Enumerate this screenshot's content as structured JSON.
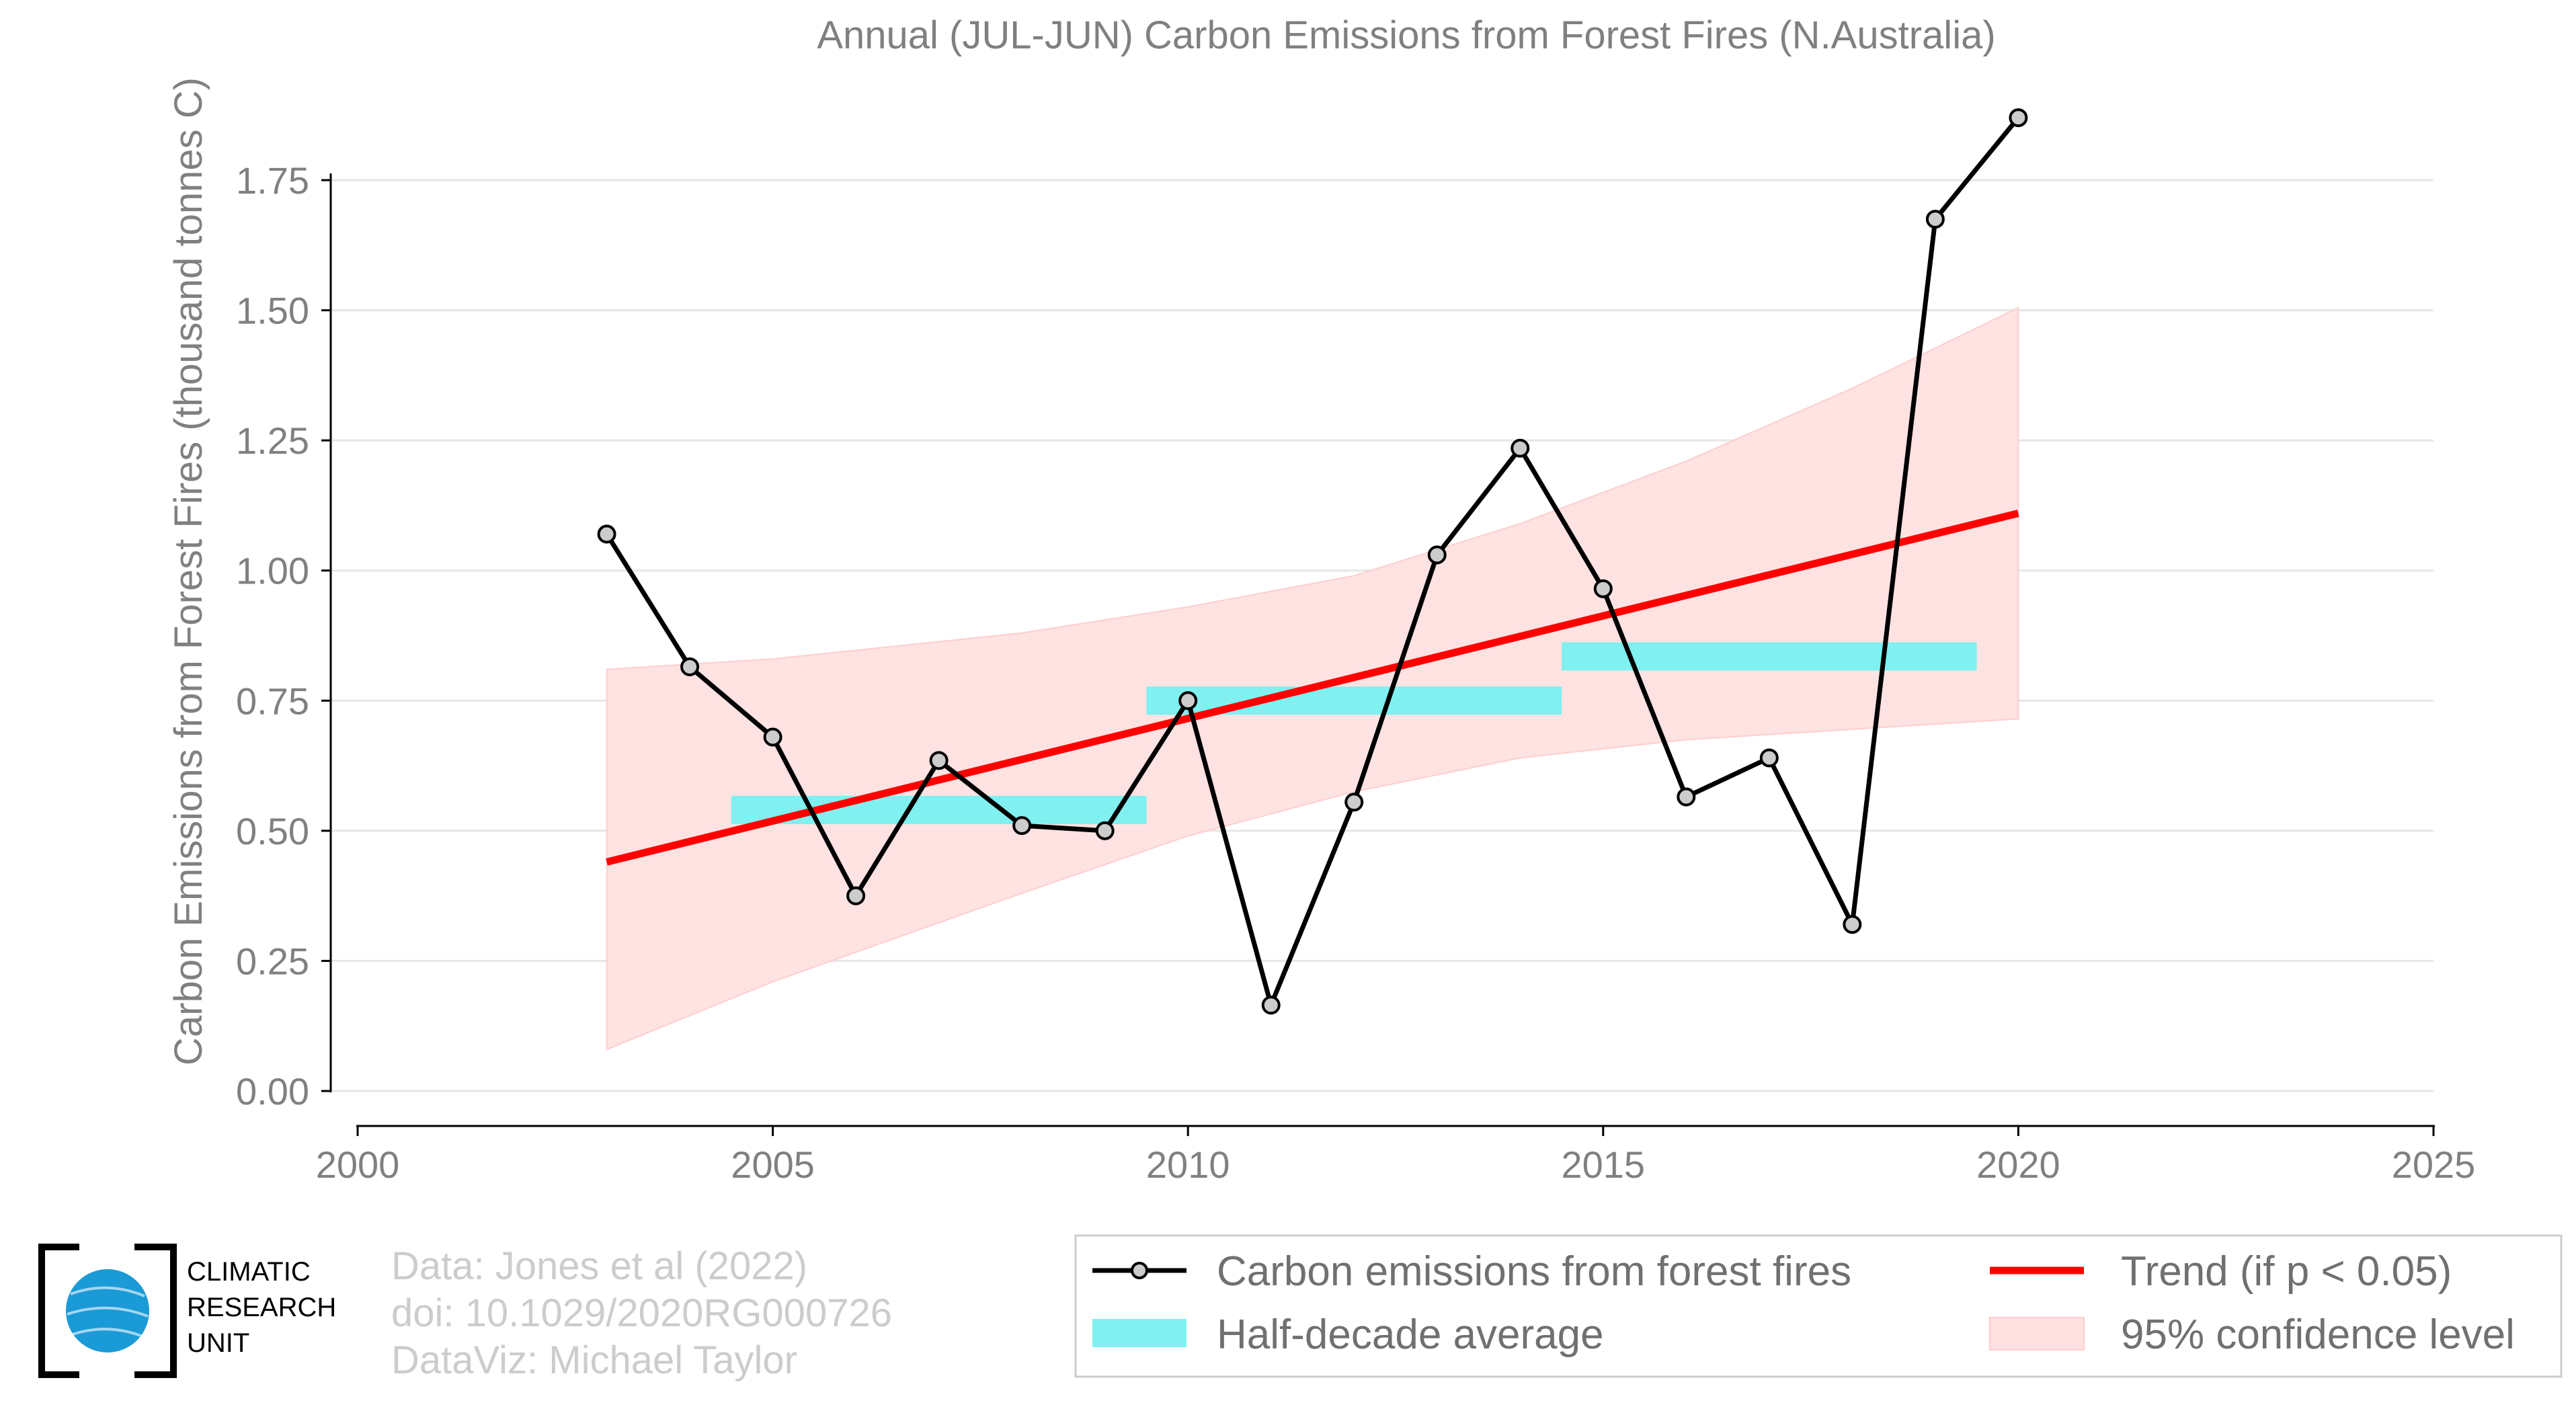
{
  "chart_data": {
    "type": "line",
    "title": "Annual (JUL-JUN) Carbon Emissions from Forest Fires (N.Australia)",
    "xlabel": "",
    "ylabel": "Carbon Emissions from Forest Fires (thousand tonnes C)",
    "xlim": [
      2000,
      2025
    ],
    "ylim": [
      0,
      1.875
    ],
    "xticks": [
      2000,
      2005,
      2010,
      2015,
      2020,
      2025
    ],
    "yticks": [
      0.0,
      0.25,
      0.5,
      0.75,
      1.0,
      1.25,
      1.5,
      1.75
    ],
    "xtick_labels": [
      "2000",
      "2005",
      "2010",
      "2015",
      "2020",
      "2025"
    ],
    "ytick_labels": [
      "0.00",
      "0.25",
      "0.50",
      "0.75",
      "1.00",
      "1.25",
      "1.50",
      "1.75"
    ],
    "grid": "horizontal",
    "legend_position": "bottom",
    "series": [
      {
        "name": "Carbon emissions from forest fires",
        "color": "#000000",
        "marker_fill": "#cccccc",
        "x": [
          2003,
          2004,
          2005,
          2006,
          2007,
          2008,
          2009,
          2010,
          2011,
          2012,
          2013,
          2014,
          2015,
          2016,
          2017,
          2018,
          2019,
          2020
        ],
        "y": [
          1.07,
          0.815,
          0.68,
          0.375,
          0.635,
          0.51,
          0.5,
          0.75,
          0.165,
          0.555,
          1.03,
          1.235,
          0.965,
          0.565,
          0.64,
          0.32,
          1.675,
          1.87
        ]
      },
      {
        "name": "Half-decade average",
        "color": "#80f0f0",
        "segments": [
          {
            "x_start": 2004.5,
            "x_end": 2009.5,
            "y": 0.54
          },
          {
            "x_start": 2009.5,
            "x_end": 2014.5,
            "y": 0.75
          },
          {
            "x_start": 2014.5,
            "x_end": 2019.5,
            "y": 0.835
          }
        ]
      },
      {
        "name": "Trend (if p < 0.05)",
        "color": "#ff0000",
        "x": [
          2003,
          2020
        ],
        "y": [
          0.44,
          1.11
        ]
      },
      {
        "name": "95% confidence level",
        "color": "#ffe1e1",
        "x": [
          2003,
          2005,
          2008,
          2010,
          2012,
          2014,
          2016,
          2018,
          2020
        ],
        "upper": [
          0.81,
          0.83,
          0.88,
          0.93,
          0.99,
          1.09,
          1.21,
          1.35,
          1.505
        ],
        "lower": [
          0.08,
          0.21,
          0.38,
          0.49,
          0.575,
          0.64,
          0.675,
          0.695,
          0.715
        ]
      }
    ]
  },
  "legend": {
    "items": [
      {
        "label": "Carbon emissions from forest fires"
      },
      {
        "label": "Trend (if p < 0.05)"
      },
      {
        "label": "Half-decade average"
      },
      {
        "label": "95% confidence level"
      }
    ]
  },
  "credits": {
    "line1": "Data: Jones et al (2022)",
    "line2": "doi: 10.1029/2020RG000726",
    "line3": "DataViz: Michael Taylor"
  },
  "logo": {
    "line1": "CLIMATIC",
    "line2": "RESEARCH",
    "line3": "UNIT"
  }
}
